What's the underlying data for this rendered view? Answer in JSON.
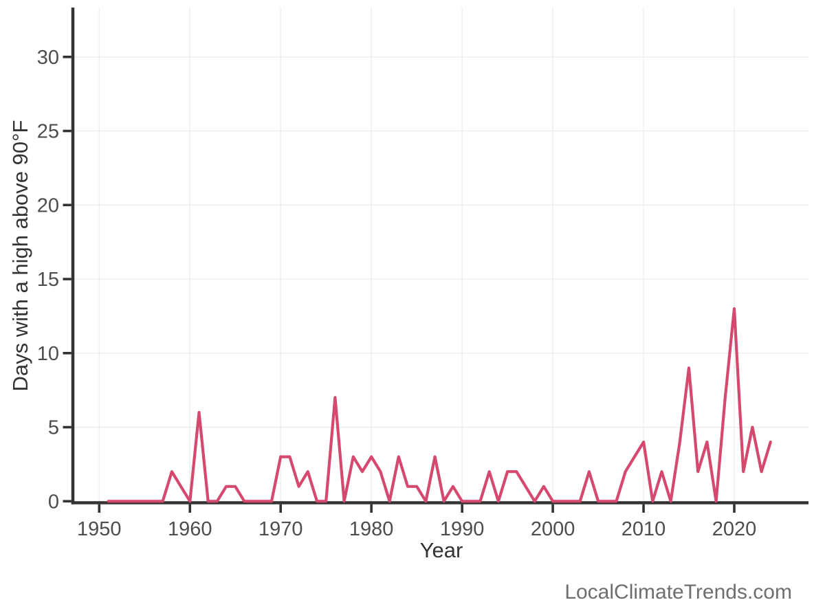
{
  "chart_data": {
    "type": "line",
    "title": "",
    "xlabel": "Year",
    "ylabel": "Days with a high above 90°F",
    "watermark": "LocalClimateTrends.com",
    "x": [
      1951,
      1952,
      1953,
      1954,
      1955,
      1956,
      1957,
      1958,
      1959,
      1960,
      1961,
      1962,
      1963,
      1964,
      1965,
      1966,
      1967,
      1968,
      1969,
      1970,
      1971,
      1972,
      1973,
      1974,
      1975,
      1976,
      1977,
      1978,
      1979,
      1980,
      1981,
      1982,
      1983,
      1984,
      1985,
      1986,
      1987,
      1988,
      1989,
      1990,
      1991,
      1992,
      1993,
      1994,
      1995,
      1996,
      1997,
      1998,
      1999,
      2000,
      2001,
      2002,
      2003,
      2004,
      2005,
      2006,
      2007,
      2008,
      2009,
      2010,
      2011,
      2012,
      2013,
      2014,
      2015,
      2016,
      2017,
      2018,
      2019,
      2020,
      2021,
      2022,
      2023,
      2024
    ],
    "values": [
      0,
      0,
      0,
      0,
      0,
      0,
      0,
      2,
      1,
      0,
      6,
      0,
      0,
      1,
      1,
      0,
      0,
      0,
      0,
      3,
      3,
      1,
      2,
      0,
      0,
      7,
      0,
      3,
      2,
      3,
      2,
      0,
      3,
      1,
      1,
      0,
      3,
      0,
      1,
      0,
      0,
      0,
      2,
      0,
      2,
      2,
      1,
      0,
      1,
      0,
      0,
      0,
      0,
      2,
      0,
      0,
      0,
      2,
      3,
      4,
      0,
      2,
      0,
      4,
      9,
      2,
      4,
      0,
      7,
      13,
      2,
      5,
      2,
      4
    ],
    "xticks": [
      1950,
      1960,
      1970,
      1980,
      1990,
      2000,
      2010,
      2020
    ],
    "yticks": [
      0,
      5,
      10,
      15,
      20,
      25,
      30
    ],
    "xlim": [
      1947.2,
      2028.2
    ],
    "ylim": [
      0,
      33.3
    ],
    "grid": true,
    "legend_position": "none",
    "line_color": "#d5496e",
    "axis_color": "#333333",
    "tick_label_color": "#4d4d4d",
    "grid_color": "#ededed",
    "background_color": "#ffffff",
    "watermark_color": "#6e6e6e"
  }
}
